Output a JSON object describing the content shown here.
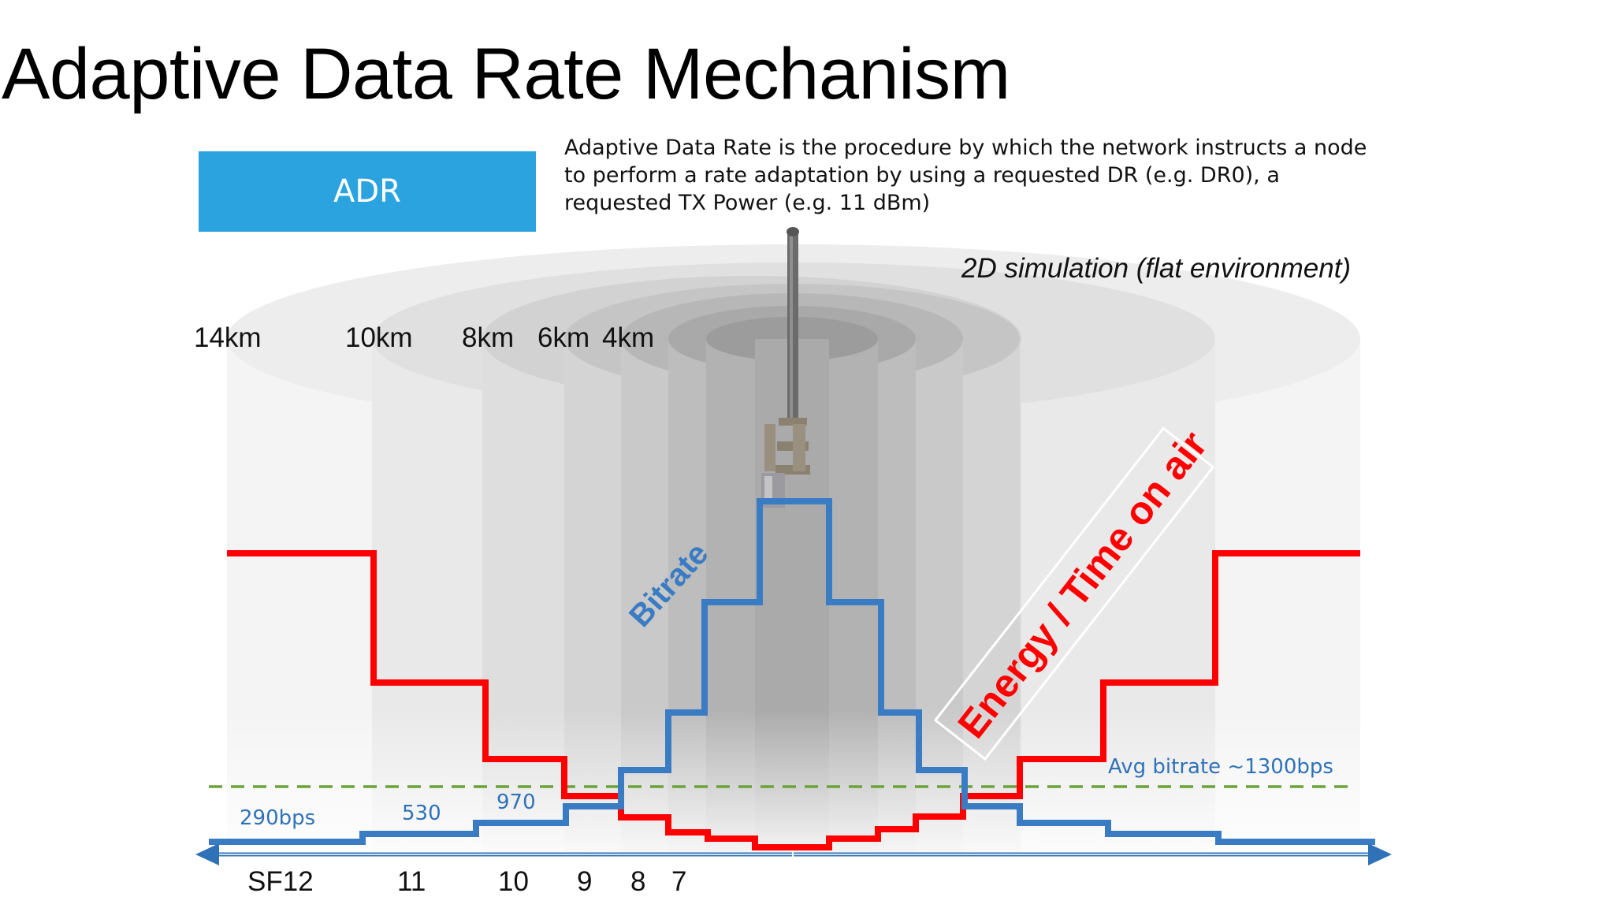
{
  "title": "Adaptive Data Rate Mechanism",
  "badge": {
    "label": "ADR",
    "color": "#2aa3df"
  },
  "description": "Adaptive Data Rate is the procedure by which the network instructs a node to perform a rate adaptation by using a requested DR (e.g. DR0), a requested TX Power (e.g. 11 dBm)",
  "simulation_label": "2D simulation (flat environment)",
  "distances": [
    "14km",
    "10km",
    "8km",
    "6km",
    "4km"
  ],
  "spreading_factors": [
    "SF12",
    "11",
    "10",
    "9",
    "8",
    "7"
  ],
  "bitrate_labels": [
    "290bps",
    "530",
    "970"
  ],
  "avg_bitrate_label": "Avg bitrate ~1300bps",
  "curve_labels": {
    "bitrate": "Bitrate",
    "energy": "Energy / Time on air"
  },
  "colors": {
    "bitrate": "#3a7cc4",
    "energy": "#ff0000",
    "average": "#6aa339",
    "axis": "#2f72b8"
  }
}
